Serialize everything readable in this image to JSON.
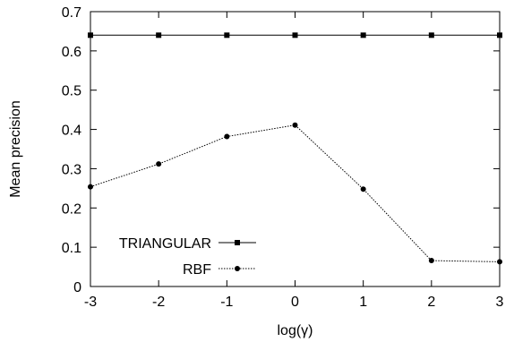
{
  "chart_data": {
    "type": "line",
    "title": "",
    "xlabel": "log(γ)",
    "ylabel": "Mean precision",
    "x": [
      -3,
      -2,
      -1,
      0,
      1,
      2,
      3
    ],
    "xlim": [
      -3,
      3
    ],
    "ylim": [
      0,
      0.7
    ],
    "x_ticks": [
      "-3",
      "-2",
      "-1",
      "0",
      "1",
      "2",
      "3"
    ],
    "y_ticks": [
      "0",
      "0.1",
      "0.2",
      "0.3",
      "0.4",
      "0.5",
      "0.6",
      "0.7"
    ],
    "grid": false,
    "legend_position": "bottom-left",
    "series": [
      {
        "name": "TRIANGULAR",
        "values": [
          0.64,
          0.64,
          0.64,
          0.64,
          0.64,
          0.64,
          0.64
        ],
        "marker": "square",
        "line": "solid",
        "color": "#000000"
      },
      {
        "name": "RBF",
        "values": [
          0.254,
          0.312,
          0.382,
          0.411,
          0.248,
          0.066,
          0.063
        ],
        "marker": "circle",
        "line": "dotted",
        "color": "#000000"
      }
    ]
  }
}
